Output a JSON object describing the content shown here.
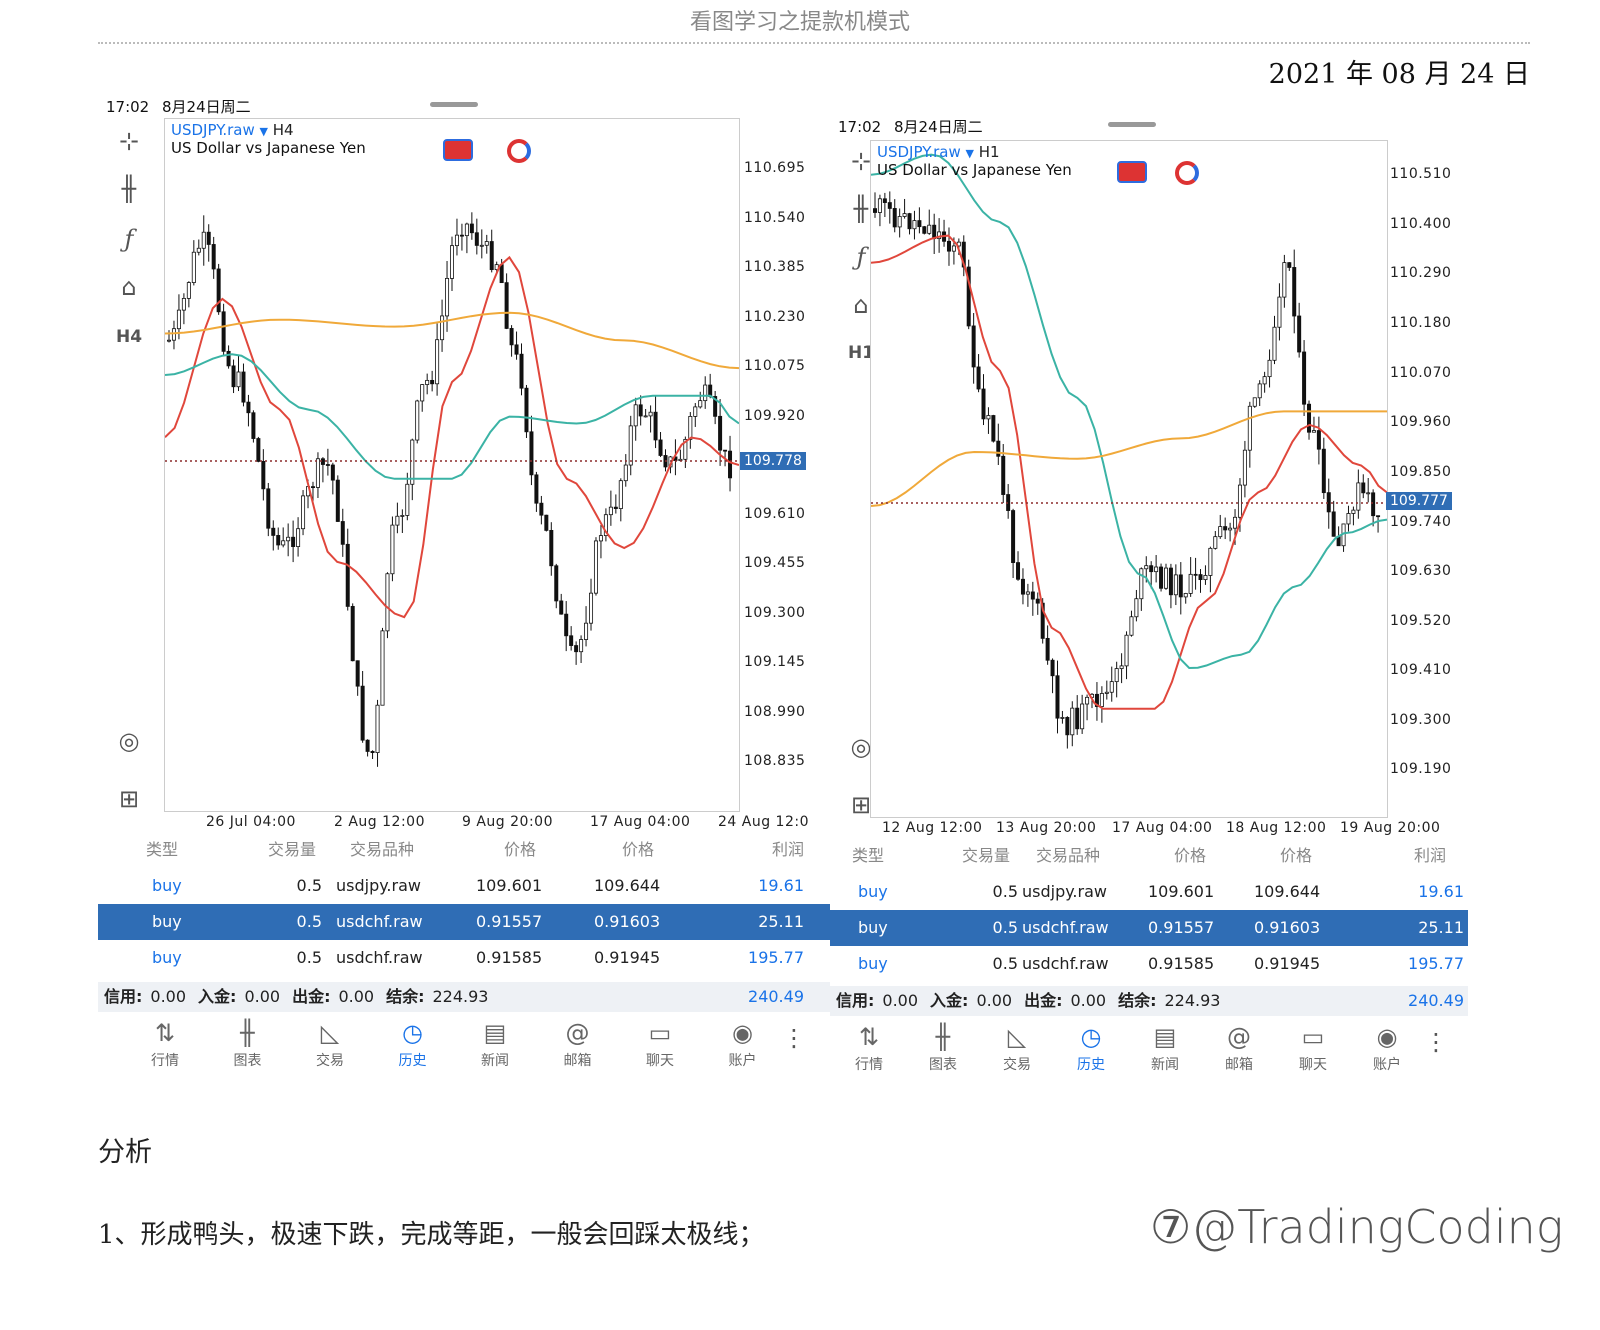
{
  "doc": {
    "header": "看图学习之提款机模式",
    "date": "2021 年 08 月 24 日",
    "section_title": "分析",
    "paragraph_1": "1、形成鸭头，极速下跌，完成等距，一般会回踩太极线；",
    "watermark": "⑦@TradingCoding"
  },
  "left": {
    "status_time": "17:02",
    "status_date": "8月24日周二",
    "timeframe": "H4",
    "symbol": "USDJPY.raw",
    "symbol_tf": "H4",
    "symbol_desc": "US Dollar vs Japanese Yen",
    "current_price": "109.778",
    "price_ticks": [
      "110.695",
      "110.540",
      "110.385",
      "110.230",
      "110.075",
      "109.920",
      "109.610",
      "109.455",
      "109.300",
      "109.145",
      "108.990",
      "108.835"
    ],
    "time_ticks": [
      "26 Jul 04:00",
      "2 Aug 12:00",
      "9 Aug 20:00",
      "17 Aug 04:00",
      "24 Aug 12:0"
    ]
  },
  "right": {
    "status_time": "17:02",
    "status_date": "8月24日周二",
    "timeframe": "H1",
    "symbol": "USDJPY.raw",
    "symbol_tf": "H1",
    "symbol_desc": "US Dollar vs Japanese Yen",
    "current_price": "109.777",
    "price_ticks": [
      "110.510",
      "110.400",
      "110.290",
      "110.180",
      "110.070",
      "109.960",
      "109.850",
      "109.740",
      "109.630",
      "109.520",
      "109.410",
      "109.300",
      "109.190"
    ],
    "time_ticks": [
      "12 Aug 12:00",
      "13 Aug 20:00",
      "17 Aug 04:00",
      "18 Aug 12:00",
      "19 Aug 20:00"
    ]
  },
  "table": {
    "headers": [
      "类型",
      "交易量",
      "交易品种",
      "价格",
      "价格",
      "利润"
    ],
    "rows": [
      {
        "type": "buy",
        "volume": "0.5",
        "symbol": "usdjpy.raw",
        "open": "109.601",
        "close": "109.644",
        "profit": "19.61"
      },
      {
        "type": "buy",
        "volume": "0.5",
        "symbol": "usdchf.raw",
        "open": "0.91557",
        "close": "0.91603",
        "profit": "25.11"
      },
      {
        "type": "buy",
        "volume": "0.5",
        "symbol": "usdchf.raw",
        "open": "0.91585",
        "close": "0.91945",
        "profit": "195.77"
      }
    ],
    "summary": {
      "credit_label": "信用:",
      "credit": "0.00",
      "deposit_label": "入金:",
      "deposit": "0.00",
      "withdraw_label": "出金:",
      "withdraw": "0.00",
      "balance_label": "结余:",
      "balance": "224.93",
      "total": "240.49"
    }
  },
  "nav": [
    {
      "label": "行情",
      "icon": "quotes-icon"
    },
    {
      "label": "图表",
      "icon": "chart-icon"
    },
    {
      "label": "交易",
      "icon": "trade-icon"
    },
    {
      "label": "历史",
      "icon": "history-icon",
      "active": true
    },
    {
      "label": "新闻",
      "icon": "news-icon"
    },
    {
      "label": "邮箱",
      "icon": "mail-icon"
    },
    {
      "label": "聊天",
      "icon": "chat-icon"
    },
    {
      "label": "账户",
      "icon": "account-icon"
    }
  ],
  "colors": {
    "accent": "#1a73e8",
    "selected_row": "#2f6db5",
    "ma_red": "#e0473c",
    "ma_teal": "#3bb3a5",
    "ma_orange": "#f0a93a",
    "price_line": "#8b2c2c"
  }
}
